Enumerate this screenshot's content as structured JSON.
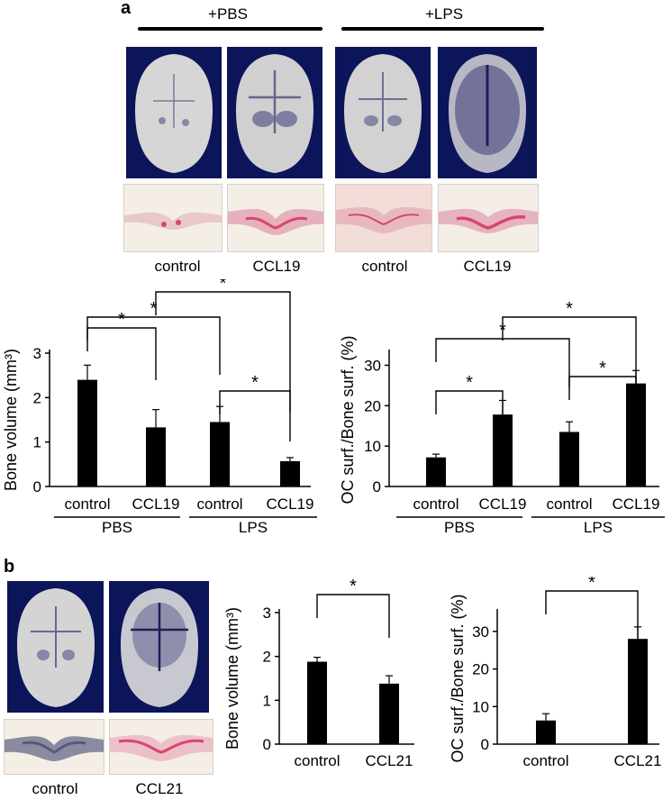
{
  "figure": {
    "panel_a_label": "a",
    "panel_b_label": "b",
    "group_pbs": "+PBS",
    "group_lps": "+LPS",
    "images_a": [
      "control",
      "CCL19",
      "control",
      "CCL19"
    ],
    "images_b": [
      "control",
      "CCL21"
    ],
    "colors": {
      "ct_background": "#0c145a",
      "bone": "#d6d6d6",
      "resorption": "#3a3a78",
      "histo_bg": "#f4eee6",
      "trap_stain": "#d8456e",
      "bar_fill": "#000000"
    }
  },
  "chart_data": [
    {
      "type": "bar",
      "panel": "a",
      "ylabel": "Bone volume (mm³)",
      "categories": [
        "control",
        "CCL19",
        "control",
        "CCL19"
      ],
      "groups": [
        "PBS",
        "LPS"
      ],
      "values": [
        2.4,
        1.33,
        1.45,
        0.57
      ],
      "errors": [
        0.33,
        0.4,
        0.35,
        0.08
      ],
      "ylim": [
        0,
        3
      ],
      "yticks": [
        "0",
        "1",
        "2",
        "3"
      ],
      "significance": [
        "*",
        "*",
        "*",
        "*"
      ]
    },
    {
      "type": "bar",
      "panel": "a",
      "ylabel": "OC surf./Bone surf. (%)",
      "categories": [
        "control",
        "CCL19",
        "control",
        "CCL19"
      ],
      "groups": [
        "PBS",
        "LPS"
      ],
      "values": [
        7.2,
        17.8,
        13.5,
        25.5
      ],
      "errors": [
        0.8,
        3.5,
        2.5,
        3.2
      ],
      "ylim": [
        0,
        33
      ],
      "yticks": [
        "0",
        "10",
        "20",
        "30"
      ],
      "significance": [
        "*",
        "*",
        "*",
        "*"
      ]
    },
    {
      "type": "bar",
      "panel": "b",
      "ylabel": "Bone volume (mm³)",
      "categories": [
        "control",
        "CCL21"
      ],
      "values": [
        1.88,
        1.38
      ],
      "errors": [
        0.1,
        0.18
      ],
      "ylim": [
        0,
        3
      ],
      "yticks": [
        "0",
        "1",
        "2",
        "3"
      ],
      "significance": [
        "*"
      ]
    },
    {
      "type": "bar",
      "panel": "b",
      "ylabel": "OC surf./Bone surf. (%)",
      "categories": [
        "control",
        "CCL21"
      ],
      "values": [
        6.3,
        28.0
      ],
      "errors": [
        1.8,
        3.2
      ],
      "ylim": [
        0,
        35
      ],
      "yticks": [
        "0",
        "10",
        "20",
        "30"
      ],
      "significance": [
        "*"
      ]
    }
  ]
}
